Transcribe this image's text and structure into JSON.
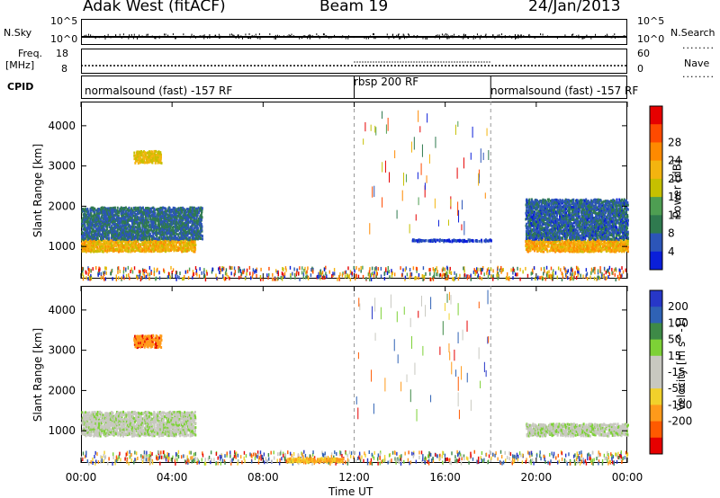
{
  "header": {
    "station": "Adak West (fitACF)",
    "beam": "Beam 19",
    "date": "24/Jan/2013"
  },
  "side_labels": {
    "nsky": "N.Sky",
    "freq": "Freq.",
    "freq_unit": "[MHz]",
    "cpid": "CPID",
    "nsearch": "N.Search",
    "nave": "Nave",
    "dots": "........"
  },
  "tick_text": {
    "pow_top": "10^5",
    "pow_bottom": "10^0",
    "freq_top": "18",
    "freq_bottom": "8",
    "nave_top": "60",
    "nave_bottom": "0"
  },
  "cpid": [
    "normalsound (fast) -157 RF",
    "rbsp 200 RF",
    "normalsound (fast) -157 RF"
  ],
  "cpid_boundaries_hours": [
    12,
    18
  ],
  "chart_data": [
    {
      "type": "heatmap",
      "title": "",
      "xlabel": "Time UT",
      "ylabel": "Slant Range [km]",
      "x_ticks": [
        "00:00",
        "04:00",
        "08:00",
        "12:00",
        "16:00",
        "20:00",
        "00:00"
      ],
      "xlim_hours": [
        0,
        24
      ],
      "y_ticks": [
        1000,
        2000,
        3000,
        4000
      ],
      "ylim": [
        200,
        4600
      ],
      "colorbar": {
        "label": "Power [dB]",
        "ticks": [
          4,
          8,
          12,
          16,
          20,
          24,
          28
        ],
        "colors": [
          "#0a1fd9",
          "#2c55b8",
          "#2f7a4f",
          "#4e9e52",
          "#c6c000",
          "#f3b40f",
          "#ff8a00",
          "#ff4a00",
          "#e60000"
        ]
      },
      "features": [
        {
          "name": "E-region echoes 00-05 UT",
          "time_range": [
            0,
            5
          ],
          "range_km": [
            900,
            1200
          ],
          "power_db": 24
        },
        {
          "name": "F-region band 00-05 UT",
          "time_range": [
            0,
            5.3
          ],
          "range_km": [
            1200,
            2000
          ],
          "power_db": 10
        },
        {
          "name": "echo 02:30 UT",
          "time_range": [
            2.3,
            3.5
          ],
          "range_km": [
            3100,
            3400
          ],
          "power_db": 22
        },
        {
          "name": "echo 20-24 UT",
          "time_range": [
            19.5,
            24
          ],
          "range_km": [
            900,
            1200
          ],
          "power_db": 25
        },
        {
          "name": "F-region band 20-24 UT",
          "time_range": [
            19.5,
            24
          ],
          "range_km": [
            1200,
            2200
          ],
          "power_db": 9
        },
        {
          "name": "thin echo 15-18 UT",
          "time_range": [
            14.5,
            18
          ],
          "range_km": [
            1150,
            1200
          ],
          "power_db": 6
        }
      ]
    },
    {
      "type": "heatmap",
      "title": "",
      "xlabel": "Time UT",
      "ylabel": "Slant Range [km]",
      "x_ticks": [
        "00:00",
        "04:00",
        "08:00",
        "12:00",
        "16:00",
        "20:00",
        "00:00"
      ],
      "xlim_hours": [
        0,
        24
      ],
      "y_ticks": [
        1000,
        2000,
        3000,
        4000
      ],
      "ylim": [
        200,
        4600
      ],
      "colorbar": {
        "label": "Velocity [m s^-1]",
        "ticks": [
          200,
          100,
          50,
          15,
          -15,
          -50,
          -100,
          -200
        ],
        "colors": [
          "#2737c8",
          "#2f62b5",
          "#3e8a47",
          "#7dd136",
          "#c8c8c0",
          "#c8c8c0",
          "#f1d12b",
          "#ff9a1a",
          "#ff5a00",
          "#e60000"
        ]
      },
      "features": [
        {
          "name": "ground scatter 00-05 UT",
          "time_range": [
            0,
            5
          ],
          "range_km": [
            900,
            1500
          ],
          "velocity": 0
        },
        {
          "name": "echo 02:30 UT",
          "time_range": [
            2.3,
            3.5
          ],
          "range_km": [
            3100,
            3400
          ],
          "velocity": -180
        },
        {
          "name": "ground scatter 20-24 UT",
          "time_range": [
            19.5,
            24
          ],
          "range_km": [
            900,
            1200
          ],
          "velocity": 0
        },
        {
          "name": "orange band 08-12 UT",
          "time_range": [
            9,
            11.5
          ],
          "range_km": [
            250,
            350
          ],
          "velocity": -100
        }
      ]
    }
  ]
}
